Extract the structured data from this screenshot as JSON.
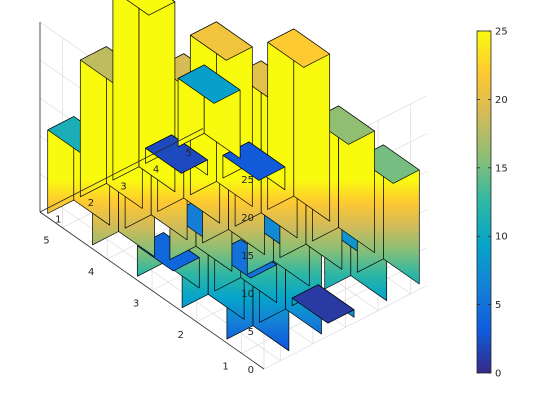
{
  "chart_data": {
    "type": "bar3",
    "title": "",
    "xlabel": "",
    "ylabel": "",
    "zlabel": "",
    "row_ticks": [
      "1",
      "2",
      "3",
      "4",
      "5"
    ],
    "col_ticks": [
      "1",
      "2",
      "3",
      "4",
      "5"
    ],
    "z_ticks": [
      "0",
      "5",
      "10",
      "15",
      "20",
      "25"
    ],
    "zlim": [
      0,
      25
    ],
    "grid": true,
    "values": [
      [
        17,
        24,
        1,
        8,
        15
      ],
      [
        23,
        5,
        7,
        14,
        16
      ],
      [
        4,
        6,
        13,
        20,
        22
      ],
      [
        10,
        12,
        19,
        21,
        3
      ],
      [
        11,
        18,
        25,
        2,
        9
      ]
    ],
    "colormap": "parula",
    "colormap_stops": [
      "#352a87",
      "#0f5cdd",
      "#1481d6",
      "#06a4ca",
      "#2eb7a4",
      "#87bf77",
      "#d1bb59",
      "#fec832",
      "#f9fb0e"
    ],
    "colorbar": {
      "location": "right",
      "limits": [
        0,
        25
      ],
      "ticks": [
        "0",
        "5",
        "10",
        "15",
        "20",
        "25"
      ]
    }
  }
}
